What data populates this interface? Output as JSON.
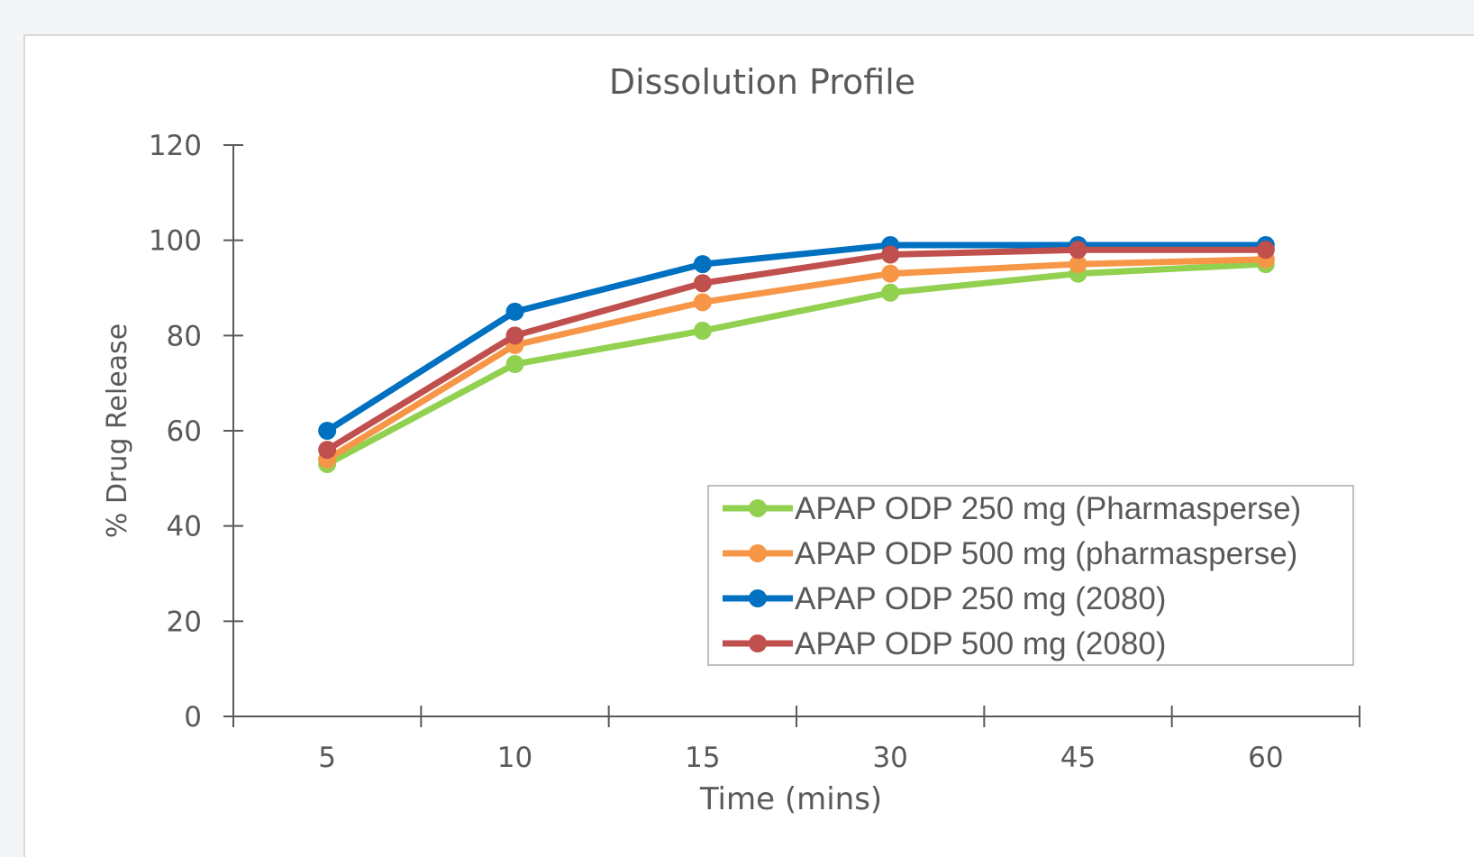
{
  "chart_data": {
    "type": "line",
    "title": "Dissolution Profile",
    "xlabel": "Time (mins)",
    "ylabel": "% Drug Release",
    "categories": [
      "5",
      "10",
      "15",
      "30",
      "45",
      "60"
    ],
    "ylim": [
      0,
      120
    ],
    "yticks": [
      "0",
      "20",
      "40",
      "60",
      "80",
      "100",
      "120"
    ],
    "grid": false,
    "legend_position": "bottom-right",
    "series": [
      {
        "name": "APAP ODP 250 mg (Pharmasperse)",
        "color": "#92d050",
        "values": [
          53,
          74,
          81,
          89,
          93,
          95
        ]
      },
      {
        "name": "APAP ODP 500 mg (pharmasperse)",
        "color": "#f79646",
        "values": [
          54,
          78,
          87,
          93,
          95,
          96
        ]
      },
      {
        "name": "APAP ODP 250 mg (2080)",
        "color": "#0070c0",
        "values": [
          60,
          85,
          95,
          99,
          99,
          99
        ]
      },
      {
        "name": "APAP ODP 500 mg (2080)",
        "color": "#c0504d",
        "values": [
          56,
          80,
          91,
          97,
          98,
          98
        ]
      }
    ]
  }
}
